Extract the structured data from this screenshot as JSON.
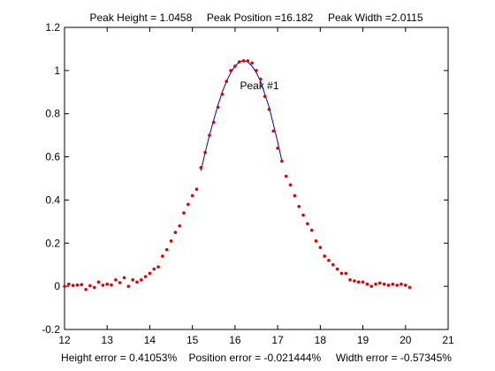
{
  "chart_data": {
    "type": "scatter",
    "title": "Peak Height = 1.0458     Peak Position =16.182     Peak Width =2.0115",
    "xlabel": "Height error = 0.41053%    Position error = -0.021444%     Width error = -0.57345%",
    "ylabel": "",
    "xlim": [
      12,
      21
    ],
    "ylim": [
      -0.2,
      1.2
    ],
    "x_ticks": [
      "12",
      "13",
      "14",
      "15",
      "16",
      "17",
      "18",
      "19",
      "20",
      "21"
    ],
    "y_ticks": [
      "-0.2",
      "0",
      "0.2",
      "0.4",
      "0.6",
      "0.8",
      "1",
      "1.2"
    ],
    "grid": false,
    "annotations": [
      {
        "text": "Peak #1",
        "x": 16.2,
        "y": 0.93
      }
    ],
    "colors": {
      "points": "#dd0000",
      "fit_line": "#0000cc",
      "fit_points": "#0000cc"
    },
    "series": [
      {
        "type": "scatter",
        "x": [
          12.0,
          12.1,
          12.2,
          12.3,
          12.4,
          12.5,
          12.6,
          12.7,
          12.8,
          12.9,
          13.0,
          13.1,
          13.2,
          13.3,
          13.4,
          13.5,
          13.6,
          13.7,
          13.8,
          13.9,
          14.0,
          14.1,
          14.2,
          14.3,
          14.4,
          14.5,
          14.6,
          14.7,
          14.8,
          14.9,
          15.0,
          15.1,
          15.2,
          15.3,
          15.4,
          15.5,
          15.6,
          15.7,
          15.8,
          15.9,
          16.0,
          16.1,
          16.2,
          16.3,
          16.4,
          16.5,
          16.6,
          16.7,
          16.8,
          16.9,
          17.0,
          17.1,
          17.2,
          17.3,
          17.4,
          17.5,
          17.6,
          17.7,
          17.8,
          17.9,
          18.0,
          18.1,
          18.2,
          18.3,
          18.4,
          18.5,
          18.6,
          18.7,
          18.8,
          18.9,
          19.0,
          19.1,
          19.2,
          19.3,
          19.4,
          19.5,
          19.6,
          19.7,
          19.8,
          19.9,
          20.0,
          20.1
        ],
        "y": [
          0.0,
          0.01,
          0.004,
          0.006,
          0.008,
          -0.015,
          0.003,
          -0.005,
          0.02,
          0.005,
          0.01,
          0.006,
          0.03,
          0.017,
          0.04,
          0.0,
          0.03,
          0.02,
          0.03,
          0.045,
          0.06,
          0.08,
          0.09,
          0.14,
          0.17,
          0.21,
          0.25,
          0.28,
          0.34,
          0.38,
          0.42,
          0.45,
          0.55,
          0.62,
          0.7,
          0.76,
          0.83,
          0.89,
          0.95,
          1.0,
          1.02,
          1.04,
          1.045,
          1.045,
          1.035,
          1.0,
          0.96,
          0.88,
          0.82,
          0.72,
          0.64,
          0.58,
          0.51,
          0.47,
          0.42,
          0.37,
          0.33,
          0.29,
          0.26,
          0.21,
          0.18,
          0.14,
          0.12,
          0.1,
          0.08,
          0.06,
          0.06,
          0.03,
          0.025,
          0.02,
          0.02,
          0.01,
          0.0,
          0.01,
          0.015,
          0.01,
          0.005,
          0.01,
          0.005,
          0.01,
          0.005,
          -0.005
        ]
      },
      {
        "type": "line",
        "x": [
          15.2,
          15.3,
          15.4,
          15.5,
          15.6,
          15.7,
          15.8,
          15.9,
          16.0,
          16.1,
          16.2,
          16.3,
          16.4,
          16.5,
          16.6,
          16.7,
          16.8,
          16.9,
          17.0,
          17.1
        ],
        "y": [
          0.535,
          0.62,
          0.7,
          0.77,
          0.84,
          0.9,
          0.95,
          0.99,
          1.02,
          1.04,
          1.046,
          1.04,
          1.02,
          0.99,
          0.95,
          0.89,
          0.83,
          0.75,
          0.67,
          0.58
        ]
      },
      {
        "type": "scatter",
        "x": [
          15.2,
          15.3,
          15.4,
          15.5,
          15.6,
          15.7,
          15.8,
          15.9,
          16.0,
          16.1,
          16.2,
          16.3,
          16.4,
          16.5,
          16.6,
          16.7,
          16.8,
          16.9,
          17.0,
          17.1
        ],
        "y": [
          0.55,
          0.62,
          0.7,
          0.76,
          0.83,
          0.89,
          0.95,
          1.0,
          1.02,
          1.04,
          1.045,
          1.045,
          1.035,
          1.0,
          0.96,
          0.88,
          0.82,
          0.72,
          0.64,
          0.58
        ]
      }
    ]
  }
}
